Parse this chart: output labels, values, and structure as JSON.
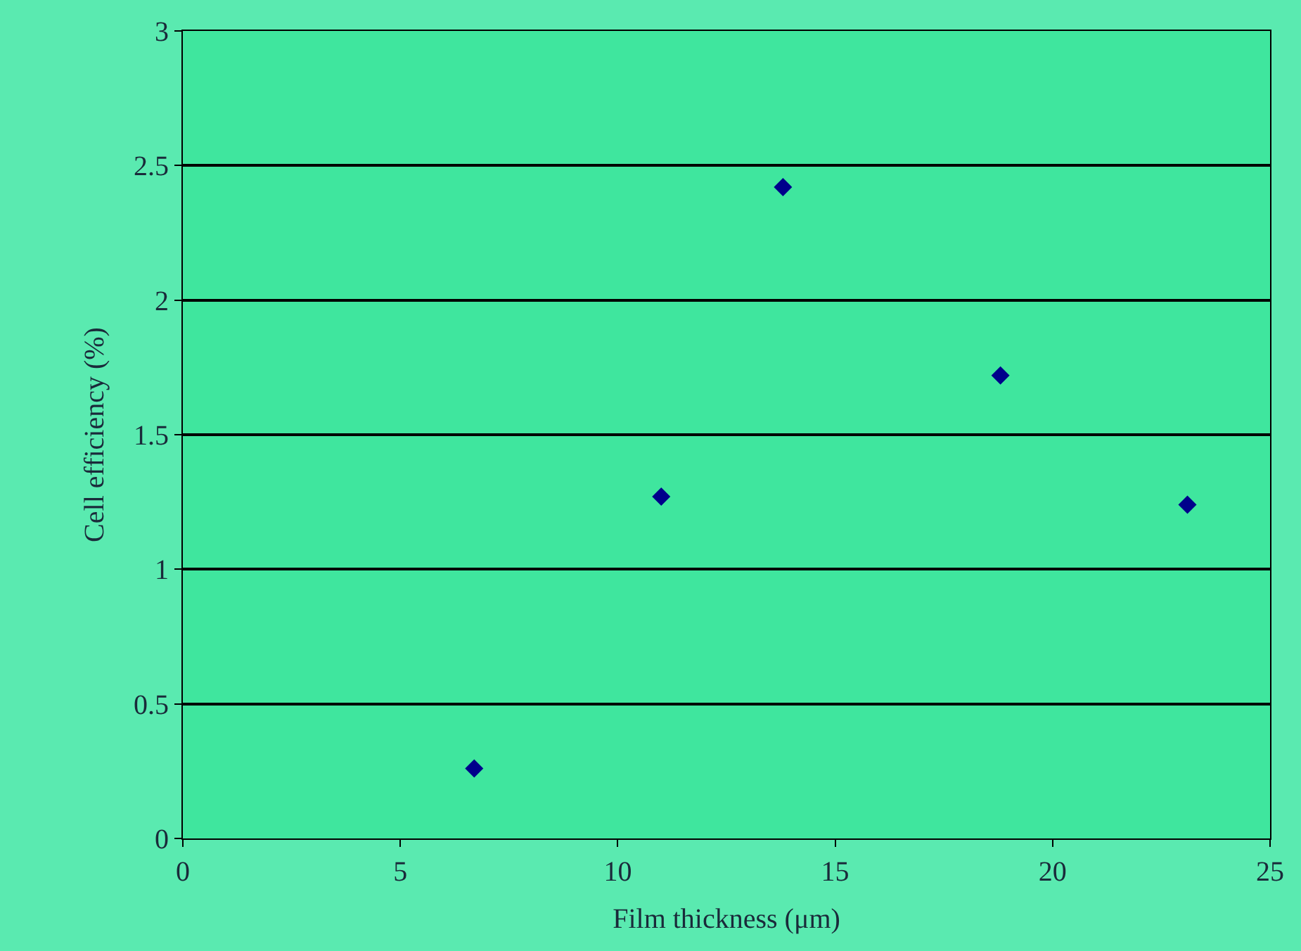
{
  "chart_data": {
    "type": "scatter",
    "xlabel": "Film thickness (μm)",
    "ylabel": "Cell efficiency (%)",
    "x": [
      6.7,
      11.0,
      13.8,
      18.8,
      23.1
    ],
    "series": [
      {
        "color": "#00008b",
        "values": [
          0.26,
          1.27,
          2.42,
          1.72,
          1.24
        ]
      }
    ],
    "xlim": [
      0,
      25
    ],
    "xticks": [
      0,
      5,
      10,
      15,
      20,
      25
    ],
    "ylim": [
      0,
      3
    ],
    "yticks": [
      0,
      0.5,
      1,
      1.5,
      2,
      2.5,
      3
    ],
    "grid": "y",
    "marker": "diamond"
  }
}
